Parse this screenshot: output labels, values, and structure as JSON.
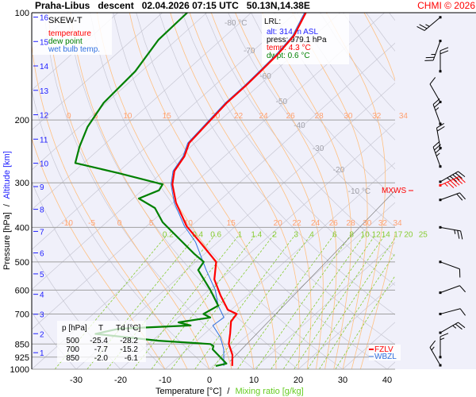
{
  "header": {
    "title": "Praha-Libus   descent   02.04.2026 07:15 UTC   50.13N,14.38E",
    "copyright": "CHMI © 2026"
  },
  "legend": {
    "title": "SKEW-T",
    "items": [
      {
        "label": "temperature",
        "color": "#ff0000"
      },
      {
        "label": "dew point",
        "color": "#008000"
      },
      {
        "label": "wet bulb temp.",
        "color": "#3070e0"
      }
    ]
  },
  "lrl": {
    "title": "LRL:",
    "alt": "alt: 314 m ASL",
    "press": "press: 979.1 hPa",
    "temp": "temp: 4.3 °C",
    "dwpt": "dwpt: 0.6 °C"
  },
  "table": {
    "headers": [
      "p [hPa]",
      "T",
      "Td [°C]"
    ],
    "rows": [
      [
        "500",
        "-25.4",
        "-28.2"
      ],
      [
        "700",
        "-7.7",
        "-15.2"
      ],
      [
        "850",
        "-2.0",
        "-6.1"
      ]
    ]
  },
  "markers": {
    "mxws": "MXWS",
    "fzlv": "FZLV",
    "wbzl": "WBZL"
  },
  "chart_data": {
    "type": "line",
    "title": "SKEW-T",
    "xlabel": "Temperature [°C]",
    "xlabel_sep": "/",
    "xlabel2": "Mixing ratio [g/kg]",
    "ylabel": "Pressure [hPa]",
    "ylabel_sep": "/",
    "ylabel2": "Altitude [km]",
    "xlim": [
      -38,
      47
    ],
    "ylim": [
      1000,
      100
    ],
    "x_ticks": [
      "-30",
      "-20",
      "-10",
      "0",
      "10",
      "20",
      "30",
      "40"
    ],
    "pressure_ticks": [
      "100",
      "200",
      "300",
      "400",
      "500",
      "600",
      "700",
      "850",
      "925",
      "1000"
    ],
    "altitude_ticks": [
      "1",
      "2",
      "3",
      "4",
      "5",
      "6",
      "7",
      "8",
      "9",
      "10",
      "11",
      "12",
      "13",
      "14",
      "15",
      "16"
    ],
    "isotherm_labels": [
      "-80 °C",
      "-70",
      "-60",
      "-50",
      "-40",
      "-30",
      "-20",
      "-10 °C"
    ],
    "moist_adiabat_labels_upper": [
      "0",
      "5",
      "10",
      "15",
      "20",
      "22",
      "24",
      "26",
      "28",
      "30",
      "32",
      "34"
    ],
    "moist_adiabat_labels_lower": [
      "-10",
      "-5",
      "0",
      "5",
      "10",
      "15",
      "20",
      "22",
      "24",
      "26",
      "28",
      "30",
      "32",
      "34"
    ],
    "mixing_ratio_labels": [
      "0.2",
      "0.4",
      "0.6",
      "1",
      "1.4",
      "2",
      "3",
      "4",
      "6",
      "8",
      "10",
      "12",
      "14",
      "17",
      "20",
      "25"
    ],
    "series": [
      {
        "name": "temperature",
        "color": "#ff0000",
        "p": [
          979,
          912,
          849,
          794,
          735,
          700,
          681,
          621,
          560,
          500,
          440,
          397,
          341,
          303,
          278,
          253,
          232,
          204,
          179,
          160,
          145,
          131,
          116,
          100
        ],
        "T": [
          4.3,
          1.6,
          -2.0,
          -4.3,
          -7.1,
          -7.7,
          -10.8,
          -16.0,
          -21.4,
          -25.4,
          -34.0,
          -41.0,
          -49.3,
          -54.7,
          -57.6,
          -59.0,
          -61.3,
          -62.1,
          -62.9,
          -62.9,
          -63.2,
          -63.6,
          -64.6,
          -67.7
        ]
      },
      {
        "name": "dew point",
        "color": "#008000",
        "p": [
          979,
          964,
          879,
          861,
          850,
          832,
          796,
          770,
          754,
          739,
          716,
          700,
          663,
          599,
          527,
          500,
          475,
          429,
          387,
          353,
          332,
          315,
          303,
          282,
          264,
          238,
          209,
          179,
          146,
          119,
          100
        ],
        "T": [
          0.6,
          2.4,
          -4.3,
          -4.9,
          -6.1,
          -18.6,
          -34.5,
          -30.5,
          -15.2,
          -18.7,
          -12.8,
          -15.2,
          -14.0,
          -19.7,
          -27.4,
          -28.2,
          -32.3,
          -39.8,
          -47.4,
          -52.7,
          -58.7,
          -56.2,
          -56.9,
          -69.5,
          -81.9,
          -85.0,
          -88.2,
          -90.6,
          -91.4,
          -94.1,
          -94.4
        ]
      },
      {
        "name": "wet bulb temp.",
        "color": "#3070e0",
        "p": [
          979,
          879,
          814,
          754,
          716,
          663,
          599,
          527,
          440,
          397,
          341,
          303,
          278,
          253,
          232,
          204,
          179,
          160,
          145,
          131,
          116,
          100
        ],
        "T": [
          2.4,
          -1.8,
          -5.5,
          -10.2,
          -9.7,
          -14.0,
          -18.6,
          -25.6,
          -35.0,
          -41.5,
          -49.7,
          -55.0,
          -57.9,
          -59.3,
          -61.6,
          -62.4,
          -63.2,
          -63.2,
          -63.5,
          -63.9,
          -64.9,
          -68.0
        ]
      }
    ],
    "wind_barbs": [
      {
        "p": 103,
        "dir": 230,
        "kt": 15
      },
      {
        "p": 120,
        "dir": 200,
        "kt": 15
      },
      {
        "p": 146,
        "dir": 0,
        "kt": 20
      },
      {
        "p": 178,
        "dir": 330,
        "kt": 10
      },
      {
        "p": 205,
        "dir": 340,
        "kt": 15
      },
      {
        "p": 240,
        "dir": 350,
        "kt": 20
      },
      {
        "p": 270,
        "dir": 340,
        "kt": 25
      },
      {
        "p": 298,
        "dir": 60,
        "kt": 35
      },
      {
        "p": 305,
        "dir": 65,
        "kt": 45,
        "max": true
      },
      {
        "p": 335,
        "dir": 70,
        "kt": 20
      },
      {
        "p": 400,
        "dir": 100,
        "kt": 15
      },
      {
        "p": 500,
        "dir": 110,
        "kt": 10
      },
      {
        "p": 610,
        "dir": 70,
        "kt": 10
      },
      {
        "p": 700,
        "dir": 75,
        "kt": 10
      },
      {
        "p": 790,
        "dir": 60,
        "kt": 15
      },
      {
        "p": 925,
        "dir": 0,
        "kt": 5
      },
      {
        "p": 975,
        "dir": 330,
        "kt": 5
      }
    ]
  }
}
